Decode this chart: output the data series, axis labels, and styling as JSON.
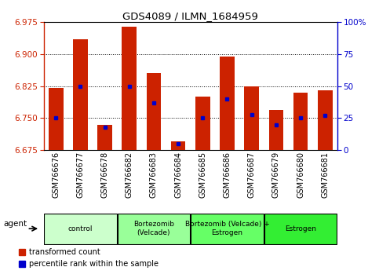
{
  "title": "GDS4089 / ILMN_1684959",
  "samples": [
    "GSM766676",
    "GSM766677",
    "GSM766678",
    "GSM766682",
    "GSM766683",
    "GSM766684",
    "GSM766685",
    "GSM766686",
    "GSM766687",
    "GSM766679",
    "GSM766680",
    "GSM766681"
  ],
  "red_values": [
    6.82,
    6.935,
    6.735,
    6.965,
    6.855,
    6.695,
    6.8,
    6.895,
    6.825,
    6.77,
    6.81,
    6.815
  ],
  "blue_values": [
    25,
    50,
    18,
    50,
    37,
    5,
    25,
    40,
    28,
    20,
    25,
    27
  ],
  "ymin": 6.675,
  "ymax": 6.975,
  "yticks": [
    6.675,
    6.75,
    6.825,
    6.9,
    6.975
  ],
  "y2min": 0,
  "y2max": 100,
  "y2ticks": [
    0,
    25,
    50,
    75,
    100
  ],
  "bar_color": "#cc2200",
  "dot_color": "#0000cc",
  "groups": [
    {
      "label": "control",
      "start": 0,
      "end": 3,
      "color": "#ccffcc"
    },
    {
      "label": "Bortezomib\n(Velcade)",
      "start": 3,
      "end": 6,
      "color": "#99ff99"
    },
    {
      "label": "Bortezomib (Velcade) +\nEstrogen",
      "start": 6,
      "end": 9,
      "color": "#66ff66"
    },
    {
      "label": "Estrogen",
      "start": 9,
      "end": 12,
      "color": "#33ee33"
    }
  ],
  "legend_labels": [
    "transformed count",
    "percentile rank within the sample"
  ],
  "figsize": [
    4.83,
    3.54
  ],
  "dpi": 100
}
